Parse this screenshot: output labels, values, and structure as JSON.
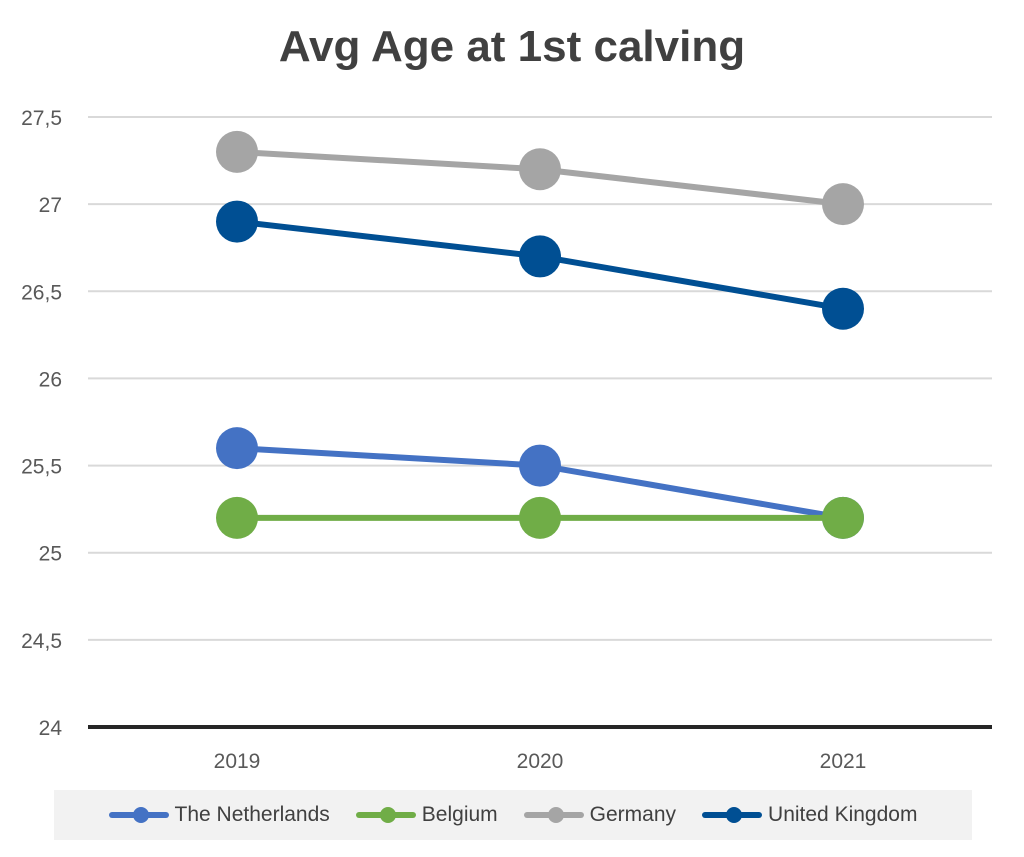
{
  "chart_data": {
    "type": "line",
    "title": "Avg Age at 1st calving",
    "categories": [
      "2019",
      "2020",
      "2021"
    ],
    "ylim": [
      24,
      27.5
    ],
    "yticks": [
      "24",
      "24,5",
      "25",
      "25,5",
      "26",
      "26,5",
      "27",
      "27,5"
    ],
    "grid": true,
    "legend_position": "bottom",
    "series": [
      {
        "name": "The Netherlands",
        "color": "#4472c4",
        "values": [
          25.6,
          25.5,
          25.2
        ]
      },
      {
        "name": "Belgium",
        "color": "#70ad47",
        "values": [
          25.2,
          25.2,
          25.2
        ]
      },
      {
        "name": "Germany",
        "color": "#a5a5a5",
        "values": [
          27.3,
          27.2,
          27.0
        ]
      },
      {
        "name": "United Kingdom",
        "color": "#004f93",
        "values": [
          26.9,
          26.7,
          26.4
        ]
      }
    ]
  }
}
